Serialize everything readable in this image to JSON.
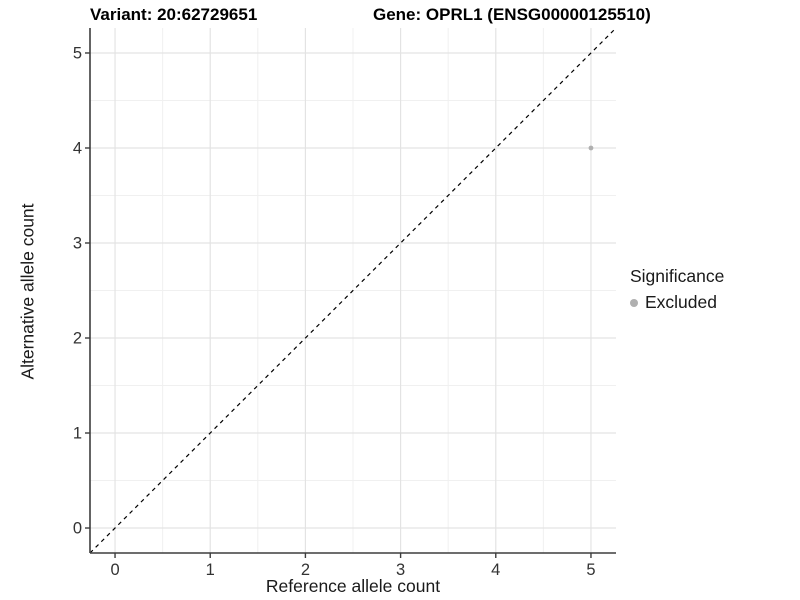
{
  "chart_data": {
    "type": "scatter",
    "title_left": "Variant: 20:62729651",
    "title_right": "Gene: OPRL1 (ENSG00000125510)",
    "xlabel": "Reference allele count",
    "ylabel": "Alternative allele count",
    "xlim": [
      -0.263,
      5.263
    ],
    "ylim": [
      -0.263,
      5.263
    ],
    "x_ticks": [
      0,
      1,
      2,
      3,
      4,
      5
    ],
    "y_ticks": [
      0,
      1,
      2,
      3,
      4,
      5
    ],
    "x_minor_ticks": [
      0.5,
      1.5,
      2.5,
      3.5,
      4.5
    ],
    "y_minor_ticks": [
      0.5,
      1.5,
      2.5,
      3.5,
      4.5
    ],
    "grid": true,
    "identity_line": {
      "style": "dashed",
      "color": "#000000",
      "from": -0.263,
      "to": 5.263
    },
    "series": [
      {
        "name": "Excluded",
        "color": "#b0b0b0",
        "points": [
          {
            "x": 5,
            "y": 4
          }
        ]
      }
    ],
    "legend": {
      "title": "Significance",
      "position": "right",
      "entries": [
        {
          "label": "Excluded",
          "color": "#b0b0b0"
        }
      ]
    }
  },
  "colors": {
    "background": "#ffffff",
    "axis_line": "#3d3d3d",
    "tick_mark": "#3d3d3d",
    "tick_label": "#333333",
    "grid_major": "#e3e3e3",
    "grid_minor": "#f0f0f0",
    "point": "#b0b0b0",
    "identity_line": "#000000"
  }
}
